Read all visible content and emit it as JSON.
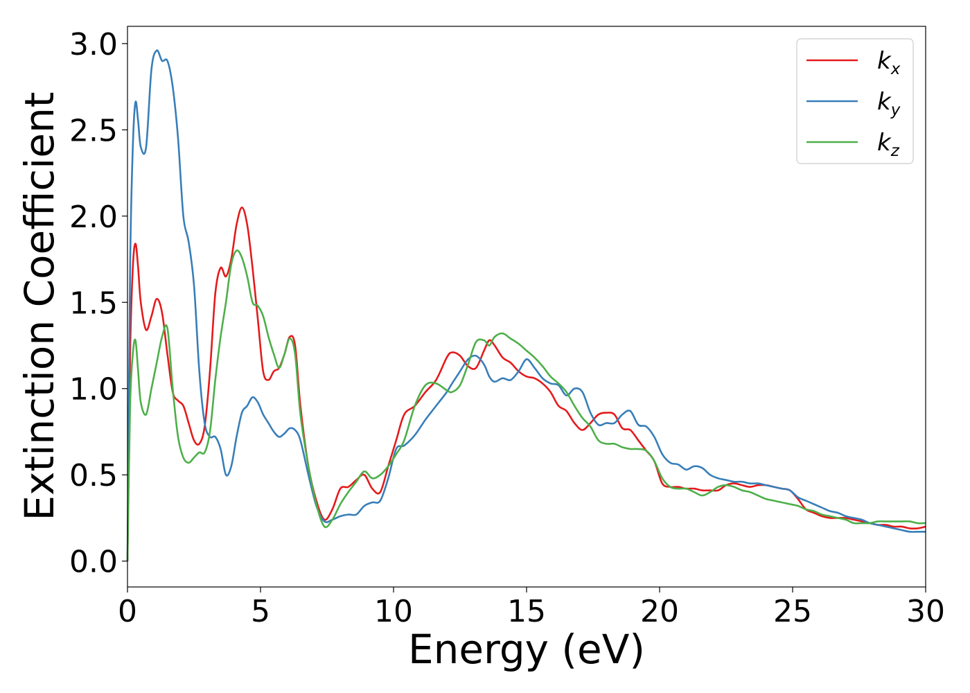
{
  "chart_data": {
    "type": "line",
    "xlabel": "Energy (eV)",
    "ylabel": "Extinction Coefficient",
    "xlim": [
      0,
      30
    ],
    "ylim": [
      -0.15,
      3.1
    ],
    "xticks": [
      0,
      5,
      10,
      15,
      20,
      25,
      30
    ],
    "yticks": [
      0.0,
      0.5,
      1.0,
      1.5,
      2.0,
      2.5,
      3.0
    ],
    "xtick_labels": [
      "0",
      "5",
      "10",
      "15",
      "20",
      "25",
      "30"
    ],
    "ytick_labels": [
      "0.0",
      "0.5",
      "1.0",
      "1.5",
      "2.0",
      "2.5",
      "3.0"
    ],
    "grid": false,
    "legend": "top-right",
    "series": [
      {
        "name": "k",
        "subscript": "x",
        "color": "#e41a1c",
        "x": [
          0,
          0.1,
          0.2,
          0.3,
          0.4,
          0.5,
          0.7,
          0.9,
          1.1,
          1.3,
          1.5,
          1.7,
          1.9,
          2.1,
          2.3,
          2.5,
          2.7,
          2.9,
          3.1,
          3.3,
          3.5,
          3.7,
          3.9,
          4.1,
          4.3,
          4.5,
          4.7,
          4.9,
          5.1,
          5.3,
          5.5,
          5.7,
          5.9,
          6.1,
          6.3,
          6.5,
          6.8,
          7.1,
          7.4,
          7.7,
          8.0,
          8.3,
          8.6,
          8.9,
          9.2,
          9.5,
          9.8,
          10.1,
          10.4,
          10.8,
          11.2,
          11.6,
          12.0,
          12.2,
          12.5,
          12.8,
          13.1,
          13.4,
          13.6,
          13.8,
          14.1,
          14.4,
          14.7,
          15.0,
          15.3,
          15.6,
          15.9,
          16.2,
          16.5,
          16.8,
          17.1,
          17.4,
          17.7,
          18.0,
          18.3,
          18.6,
          18.9,
          19.2,
          19.5,
          19.8,
          20.1,
          20.4,
          20.7,
          21.0,
          21.3,
          21.6,
          21.9,
          22.2,
          22.5,
          22.8,
          23.1,
          23.4,
          23.7,
          24.0,
          24.3,
          24.6,
          24.9,
          25.2,
          25.5,
          25.8,
          26.1,
          26.4,
          26.7,
          27.0,
          27.3,
          27.6,
          27.9,
          28.2,
          28.5,
          28.8,
          29.1,
          29.4,
          29.7,
          30.0
        ],
        "y": [
          0.0,
          1.2,
          1.7,
          1.84,
          1.7,
          1.5,
          1.34,
          1.42,
          1.52,
          1.44,
          1.2,
          0.98,
          0.93,
          0.9,
          0.8,
          0.7,
          0.68,
          0.78,
          1.1,
          1.55,
          1.7,
          1.65,
          1.75,
          1.95,
          2.05,
          1.95,
          1.7,
          1.4,
          1.1,
          1.05,
          1.1,
          1.12,
          1.2,
          1.3,
          1.25,
          0.9,
          0.55,
          0.35,
          0.24,
          0.3,
          0.42,
          0.43,
          0.47,
          0.5,
          0.42,
          0.4,
          0.55,
          0.7,
          0.85,
          0.9,
          0.98,
          1.05,
          1.18,
          1.21,
          1.19,
          1.13,
          1.12,
          1.22,
          1.28,
          1.25,
          1.18,
          1.15,
          1.1,
          1.07,
          1.06,
          1.03,
          0.98,
          0.9,
          0.87,
          0.8,
          0.76,
          0.8,
          0.85,
          0.86,
          0.85,
          0.77,
          0.76,
          0.7,
          0.64,
          0.58,
          0.45,
          0.43,
          0.43,
          0.42,
          0.42,
          0.41,
          0.41,
          0.41,
          0.44,
          0.45,
          0.44,
          0.43,
          0.44,
          0.44,
          0.43,
          0.42,
          0.41,
          0.36,
          0.3,
          0.28,
          0.26,
          0.25,
          0.25,
          0.25,
          0.24,
          0.23,
          0.22,
          0.21,
          0.21,
          0.2,
          0.2,
          0.19,
          0.19,
          0.2
        ]
      },
      {
        "name": "k",
        "subscript": "y",
        "color": "#377eb8",
        "x": [
          0,
          0.1,
          0.2,
          0.3,
          0.4,
          0.5,
          0.7,
          0.9,
          1.1,
          1.3,
          1.5,
          1.7,
          1.9,
          2.1,
          2.3,
          2.5,
          2.7,
          2.9,
          3.1,
          3.3,
          3.5,
          3.7,
          3.9,
          4.1,
          4.3,
          4.5,
          4.7,
          4.9,
          5.1,
          5.3,
          5.5,
          5.7,
          5.9,
          6.1,
          6.3,
          6.5,
          6.8,
          7.1,
          7.4,
          7.7,
          8.0,
          8.3,
          8.6,
          8.9,
          9.2,
          9.5,
          9.8,
          10.1,
          10.4,
          10.8,
          11.2,
          11.6,
          12.0,
          12.2,
          12.5,
          12.8,
          13.1,
          13.4,
          13.6,
          13.8,
          14.1,
          14.4,
          14.7,
          15.0,
          15.3,
          15.6,
          15.9,
          16.2,
          16.5,
          16.8,
          17.1,
          17.4,
          17.7,
          18.0,
          18.3,
          18.6,
          18.9,
          19.2,
          19.5,
          19.8,
          20.1,
          20.4,
          20.7,
          21.0,
          21.3,
          21.6,
          21.9,
          22.2,
          22.5,
          22.8,
          23.1,
          23.4,
          23.7,
          24.0,
          24.3,
          24.6,
          24.9,
          25.2,
          25.5,
          25.8,
          26.1,
          26.4,
          26.7,
          27.0,
          27.3,
          27.6,
          27.9,
          28.2,
          28.5,
          28.8,
          29.1,
          29.4,
          29.7,
          30.0
        ],
        "y": [
          0.0,
          1.7,
          2.4,
          2.66,
          2.55,
          2.4,
          2.4,
          2.85,
          2.96,
          2.9,
          2.9,
          2.75,
          2.45,
          2.0,
          1.85,
          1.6,
          1.1,
          0.8,
          0.72,
          0.72,
          0.65,
          0.5,
          0.55,
          0.72,
          0.86,
          0.9,
          0.95,
          0.92,
          0.85,
          0.8,
          0.75,
          0.72,
          0.74,
          0.77,
          0.76,
          0.7,
          0.5,
          0.32,
          0.23,
          0.24,
          0.26,
          0.27,
          0.27,
          0.32,
          0.34,
          0.35,
          0.48,
          0.65,
          0.67,
          0.73,
          0.82,
          0.9,
          0.98,
          1.03,
          1.1,
          1.17,
          1.19,
          1.14,
          1.07,
          1.04,
          1.06,
          1.05,
          1.1,
          1.17,
          1.12,
          1.06,
          1.03,
          1.02,
          0.96,
          1.0,
          0.98,
          0.86,
          0.79,
          0.8,
          0.8,
          0.85,
          0.87,
          0.79,
          0.78,
          0.72,
          0.62,
          0.57,
          0.56,
          0.53,
          0.55,
          0.54,
          0.5,
          0.48,
          0.47,
          0.46,
          0.46,
          0.45,
          0.45,
          0.44,
          0.43,
          0.42,
          0.41,
          0.37,
          0.35,
          0.33,
          0.31,
          0.29,
          0.28,
          0.26,
          0.25,
          0.24,
          0.22,
          0.21,
          0.2,
          0.19,
          0.18,
          0.17,
          0.17,
          0.17
        ]
      },
      {
        "name": "k",
        "subscript": "z",
        "color": "#4daf4a",
        "x": [
          0,
          0.1,
          0.2,
          0.3,
          0.4,
          0.5,
          0.7,
          0.9,
          1.1,
          1.3,
          1.5,
          1.7,
          1.9,
          2.1,
          2.3,
          2.5,
          2.7,
          2.9,
          3.1,
          3.3,
          3.5,
          3.7,
          3.9,
          4.1,
          4.3,
          4.5,
          4.7,
          4.9,
          5.1,
          5.3,
          5.5,
          5.7,
          5.9,
          6.1,
          6.3,
          6.5,
          6.8,
          7.1,
          7.4,
          7.7,
          8.0,
          8.3,
          8.6,
          8.9,
          9.2,
          9.5,
          9.8,
          10.1,
          10.4,
          10.8,
          11.2,
          11.6,
          12.0,
          12.2,
          12.5,
          12.8,
          13.1,
          13.4,
          13.6,
          13.8,
          14.1,
          14.4,
          14.7,
          15.0,
          15.3,
          15.6,
          15.9,
          16.2,
          16.5,
          16.8,
          17.1,
          17.4,
          17.7,
          18.0,
          18.3,
          18.6,
          18.9,
          19.2,
          19.5,
          19.8,
          20.1,
          20.4,
          20.7,
          21.0,
          21.3,
          21.6,
          21.9,
          22.2,
          22.5,
          22.8,
          23.1,
          23.4,
          23.7,
          24.0,
          24.3,
          24.6,
          24.9,
          25.2,
          25.5,
          25.8,
          26.1,
          26.4,
          26.7,
          27.0,
          27.3,
          27.6,
          27.9,
          28.2,
          28.5,
          28.8,
          29.1,
          29.4,
          29.7,
          30.0
        ],
        "y": [
          0.0,
          0.9,
          1.2,
          1.28,
          1.1,
          0.92,
          0.85,
          1.0,
          1.15,
          1.3,
          1.35,
          1.0,
          0.72,
          0.6,
          0.57,
          0.6,
          0.63,
          0.63,
          0.75,
          1.05,
          1.3,
          1.5,
          1.72,
          1.8,
          1.76,
          1.65,
          1.5,
          1.48,
          1.42,
          1.3,
          1.2,
          1.12,
          1.2,
          1.29,
          1.2,
          0.85,
          0.55,
          0.33,
          0.2,
          0.24,
          0.33,
          0.4,
          0.46,
          0.52,
          0.48,
          0.5,
          0.55,
          0.62,
          0.7,
          0.9,
          1.02,
          1.03,
          0.99,
          0.98,
          1.02,
          1.14,
          1.27,
          1.28,
          1.25,
          1.3,
          1.32,
          1.29,
          1.26,
          1.22,
          1.18,
          1.13,
          1.07,
          1.03,
          0.98,
          0.9,
          0.83,
          0.78,
          0.7,
          0.68,
          0.68,
          0.66,
          0.65,
          0.65,
          0.64,
          0.58,
          0.48,
          0.43,
          0.42,
          0.42,
          0.4,
          0.38,
          0.4,
          0.43,
          0.44,
          0.43,
          0.41,
          0.4,
          0.38,
          0.36,
          0.35,
          0.34,
          0.33,
          0.32,
          0.3,
          0.29,
          0.27,
          0.26,
          0.25,
          0.24,
          0.22,
          0.22,
          0.22,
          0.23,
          0.23,
          0.23,
          0.23,
          0.23,
          0.22,
          0.22
        ]
      }
    ]
  }
}
